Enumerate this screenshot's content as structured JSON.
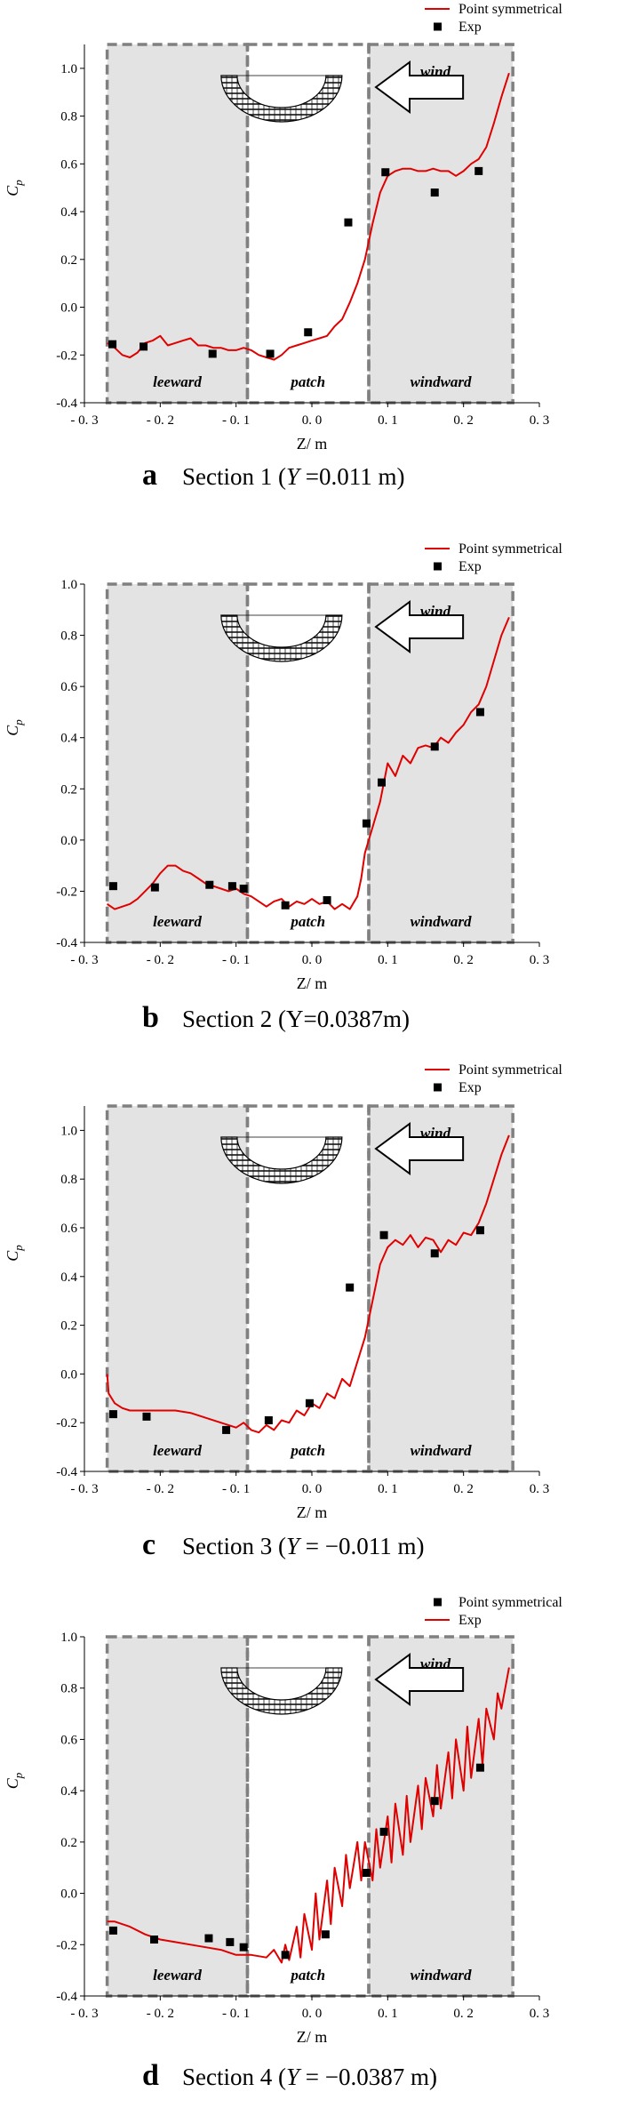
{
  "chart_data": [
    {
      "type": "line",
      "caption_letter": "a",
      "caption_text": "Section 1 (",
      "caption_var": "Y",
      "caption_rest": " =0.011 m)",
      "xlabel": "Z/ m",
      "ylabel_main": "C",
      "ylabel_sub": "p",
      "xlim": [
        -0.3,
        0.3
      ],
      "ylim": [
        -0.4,
        1.1
      ],
      "x_ticks": [
        "- 0. 3",
        "- 0. 2",
        "- 0. 1",
        "0. 0",
        "0. 1",
        "0. 2",
        "0. 3"
      ],
      "y_ticks": [
        "-0.4",
        "-0.2",
        "0.0",
        "0.2",
        "0.4",
        "0.6",
        "0.8",
        "1.0"
      ],
      "regions": [
        {
          "label": "leeward",
          "x": [
            -0.27,
            -0.085
          ]
        },
        {
          "label": "patch",
          "x": [
            -0.085,
            0.075
          ]
        },
        {
          "label": "windward",
          "x": [
            0.075,
            0.265
          ]
        }
      ],
      "wind_label": "wind",
      "legend": [
        "Point symmetrical",
        "Exp"
      ],
      "series": [
        {
          "name": "Point symmetrical",
          "kind": "line",
          "x": [
            -0.27,
            -0.26,
            -0.25,
            -0.24,
            -0.23,
            -0.22,
            -0.21,
            -0.2,
            -0.19,
            -0.18,
            -0.17,
            -0.16,
            -0.15,
            -0.14,
            -0.13,
            -0.12,
            -0.11,
            -0.1,
            -0.09,
            -0.08,
            -0.07,
            -0.06,
            -0.05,
            -0.04,
            -0.03,
            -0.02,
            -0.01,
            0.0,
            0.01,
            0.02,
            0.03,
            0.04,
            0.05,
            0.06,
            0.07,
            0.08,
            0.09,
            0.1,
            0.11,
            0.12,
            0.13,
            0.14,
            0.15,
            0.16,
            0.17,
            0.18,
            0.19,
            0.2,
            0.21,
            0.22,
            0.23,
            0.24,
            0.25,
            0.26
          ],
          "y": [
            -0.15,
            -0.17,
            -0.2,
            -0.21,
            -0.19,
            -0.15,
            -0.14,
            -0.12,
            -0.16,
            -0.15,
            -0.14,
            -0.13,
            -0.16,
            -0.16,
            -0.17,
            -0.17,
            -0.18,
            -0.18,
            -0.17,
            -0.18,
            -0.2,
            -0.21,
            -0.22,
            -0.2,
            -0.17,
            -0.16,
            -0.15,
            -0.14,
            -0.13,
            -0.12,
            -0.08,
            -0.05,
            0.02,
            0.1,
            0.2,
            0.35,
            0.48,
            0.55,
            0.57,
            0.58,
            0.58,
            0.57,
            0.57,
            0.58,
            0.57,
            0.57,
            0.55,
            0.57,
            0.6,
            0.62,
            0.67,
            0.77,
            0.88,
            0.98
          ]
        },
        {
          "name": "Exp",
          "kind": "scatter",
          "x": [
            -0.263,
            -0.222,
            -0.131,
            -0.055,
            -0.005,
            0.048,
            0.097,
            0.162,
            0.22
          ],
          "y": [
            -0.155,
            -0.165,
            -0.195,
            -0.195,
            -0.105,
            0.355,
            0.565,
            0.48,
            0.57
          ]
        }
      ]
    },
    {
      "type": "line",
      "caption_letter": "b",
      "caption_text": "Section 2 (Y=0.0387m)",
      "caption_var": "",
      "caption_rest": "",
      "xlabel": "Z/ m",
      "ylabel_main": "C",
      "ylabel_sub": "p",
      "xlim": [
        -0.3,
        0.3
      ],
      "ylim": [
        -0.4,
        1.0
      ],
      "x_ticks": [
        "- 0. 3",
        "- 0. 2",
        "- 0. 1",
        "0. 0",
        "0. 1",
        "0. 2",
        "0. 3"
      ],
      "y_ticks": [
        "-0.4",
        "-0.2",
        "0.0",
        "0.2",
        "0.4",
        "0.6",
        "0.8",
        "1.0"
      ],
      "regions": [
        {
          "label": "leeward",
          "x": [
            -0.27,
            -0.085
          ]
        },
        {
          "label": "patch",
          "x": [
            -0.085,
            0.075
          ]
        },
        {
          "label": "windward",
          "x": [
            0.075,
            0.265
          ]
        }
      ],
      "wind_label": "wind",
      "legend": [
        "Point symmetrical",
        "Exp"
      ],
      "series": [
        {
          "name": "Point symmetrical",
          "kind": "line",
          "x": [
            -0.27,
            -0.26,
            -0.25,
            -0.24,
            -0.23,
            -0.22,
            -0.21,
            -0.2,
            -0.19,
            -0.18,
            -0.17,
            -0.16,
            -0.15,
            -0.14,
            -0.13,
            -0.12,
            -0.11,
            -0.1,
            -0.09,
            -0.08,
            -0.07,
            -0.06,
            -0.05,
            -0.04,
            -0.03,
            -0.02,
            -0.01,
            0.0,
            0.01,
            0.02,
            0.03,
            0.04,
            0.05,
            0.06,
            0.065,
            0.07,
            0.08,
            0.09,
            0.1,
            0.11,
            0.12,
            0.13,
            0.14,
            0.15,
            0.16,
            0.17,
            0.18,
            0.19,
            0.2,
            0.21,
            0.22,
            0.23,
            0.24,
            0.25,
            0.26
          ],
          "y": [
            -0.25,
            -0.27,
            -0.26,
            -0.25,
            -0.23,
            -0.2,
            -0.17,
            -0.13,
            -0.1,
            -0.1,
            -0.12,
            -0.13,
            -0.15,
            -0.17,
            -0.18,
            -0.19,
            -0.2,
            -0.19,
            -0.21,
            -0.22,
            -0.24,
            -0.26,
            -0.24,
            -0.23,
            -0.26,
            -0.24,
            -0.25,
            -0.23,
            -0.25,
            -0.24,
            -0.27,
            -0.25,
            -0.27,
            -0.22,
            -0.15,
            -0.05,
            0.05,
            0.15,
            0.3,
            0.25,
            0.33,
            0.3,
            0.36,
            0.37,
            0.36,
            0.4,
            0.38,
            0.42,
            0.45,
            0.5,
            0.53,
            0.6,
            0.7,
            0.8,
            0.87
          ]
        },
        {
          "name": "Exp",
          "kind": "scatter",
          "x": [
            -0.262,
            -0.207,
            -0.135,
            -0.105,
            -0.09,
            -0.035,
            0.02,
            0.072,
            0.092,
            0.162,
            0.222
          ],
          "y": [
            -0.18,
            -0.185,
            -0.175,
            -0.18,
            -0.19,
            -0.255,
            -0.235,
            0.065,
            0.225,
            0.365,
            0.5
          ]
        }
      ]
    },
    {
      "type": "line",
      "caption_letter": "c",
      "caption_text": "Section 3 (",
      "caption_var": "Y",
      "caption_rest": " = −0.011 m)",
      "xlabel": "Z/ m",
      "ylabel_main": "C",
      "ylabel_sub": "p",
      "xlim": [
        -0.3,
        0.3
      ],
      "ylim": [
        -0.4,
        1.1
      ],
      "x_ticks": [
        "- 0. 3",
        "- 0. 2",
        "- 0. 1",
        "0. 0",
        "0. 1",
        "0. 2",
        "0. 3"
      ],
      "y_ticks": [
        "-0.4",
        "-0.2",
        "0.0",
        "0.2",
        "0.4",
        "0.6",
        "0.8",
        "1.0"
      ],
      "regions": [
        {
          "label": "leeward",
          "x": [
            -0.27,
            -0.085
          ]
        },
        {
          "label": "patch",
          "x": [
            -0.085,
            0.075
          ]
        },
        {
          "label": "windward",
          "x": [
            0.075,
            0.265
          ]
        }
      ],
      "wind_label": "wind",
      "legend": [
        "Point symmetrical",
        "Exp"
      ],
      "series": [
        {
          "name": "Point symmetrical",
          "kind": "line",
          "x": [
            -0.27,
            -0.268,
            -0.26,
            -0.25,
            -0.24,
            -0.22,
            -0.2,
            -0.18,
            -0.16,
            -0.14,
            -0.12,
            -0.1,
            -0.09,
            -0.08,
            -0.07,
            -0.06,
            -0.05,
            -0.04,
            -0.03,
            -0.02,
            -0.01,
            0.0,
            0.01,
            0.02,
            0.03,
            0.04,
            0.05,
            0.06,
            0.07,
            0.08,
            0.09,
            0.1,
            0.11,
            0.12,
            0.13,
            0.14,
            0.15,
            0.16,
            0.17,
            0.18,
            0.19,
            0.2,
            0.21,
            0.22,
            0.23,
            0.24,
            0.25,
            0.26
          ],
          "y": [
            0.0,
            -0.08,
            -0.12,
            -0.14,
            -0.15,
            -0.15,
            -0.15,
            -0.15,
            -0.16,
            -0.18,
            -0.2,
            -0.22,
            -0.2,
            -0.23,
            -0.24,
            -0.21,
            -0.23,
            -0.19,
            -0.2,
            -0.15,
            -0.17,
            -0.12,
            -0.14,
            -0.08,
            -0.1,
            -0.02,
            -0.05,
            0.05,
            0.15,
            0.3,
            0.45,
            0.52,
            0.55,
            0.53,
            0.57,
            0.52,
            0.56,
            0.55,
            0.5,
            0.55,
            0.53,
            0.58,
            0.57,
            0.62,
            0.7,
            0.8,
            0.9,
            0.98
          ]
        },
        {
          "name": "Exp",
          "kind": "scatter",
          "x": [
            -0.262,
            -0.218,
            -0.113,
            -0.057,
            -0.003,
            0.05,
            0.095,
            0.162,
            0.222
          ],
          "y": [
            -0.165,
            -0.175,
            -0.23,
            -0.19,
            -0.12,
            0.355,
            0.57,
            0.495,
            0.59
          ]
        }
      ]
    },
    {
      "type": "line",
      "caption_letter": "d",
      "caption_text": "Section 4 (",
      "caption_var": "Y",
      "caption_rest": " = −0.0387 m)",
      "xlabel": "Z/ m",
      "ylabel_main": "C",
      "ylabel_sub": "p",
      "xlim": [
        -0.3,
        0.3
      ],
      "ylim": [
        -0.4,
        1.0
      ],
      "x_ticks": [
        "- 0. 3",
        "- 0. 2",
        "- 0. 1",
        "0. 0",
        "0. 1",
        "0. 2",
        "0. 3"
      ],
      "y_ticks": [
        "-0.4",
        "-0.2",
        "0.0",
        "0.2",
        "0.4",
        "0.6",
        "0.8",
        "1.0"
      ],
      "regions": [
        {
          "label": "leeward",
          "x": [
            -0.27,
            -0.085
          ]
        },
        {
          "label": "patch",
          "x": [
            -0.085,
            0.075
          ]
        },
        {
          "label": "windward",
          "x": [
            0.075,
            0.265
          ]
        }
      ],
      "wind_label": "wind",
      "legend": [
        "Point symmetrical",
        "Exp"
      ],
      "series": [
        {
          "name": "Exp",
          "kind": "line",
          "x": [
            -0.27,
            -0.26,
            -0.24,
            -0.22,
            -0.2,
            -0.18,
            -0.16,
            -0.14,
            -0.12,
            -0.1,
            -0.08,
            -0.06,
            -0.05,
            -0.04,
            -0.035,
            -0.03,
            -0.02,
            -0.015,
            -0.01,
            0.0,
            0.005,
            0.01,
            0.02,
            0.025,
            0.03,
            0.04,
            0.045,
            0.05,
            0.06,
            0.065,
            0.07,
            0.08,
            0.085,
            0.09,
            0.1,
            0.105,
            0.11,
            0.12,
            0.125,
            0.13,
            0.14,
            0.145,
            0.15,
            0.16,
            0.165,
            0.17,
            0.18,
            0.185,
            0.19,
            0.2,
            0.205,
            0.21,
            0.22,
            0.225,
            0.23,
            0.24,
            0.245,
            0.25,
            0.26
          ],
          "y": [
            -0.11,
            -0.11,
            -0.13,
            -0.16,
            -0.18,
            -0.19,
            -0.2,
            -0.21,
            -0.22,
            -0.24,
            -0.24,
            -0.25,
            -0.22,
            -0.27,
            -0.2,
            -0.26,
            -0.13,
            -0.25,
            -0.08,
            -0.22,
            0.0,
            -0.18,
            0.05,
            -0.12,
            0.1,
            -0.05,
            0.15,
            0.02,
            0.2,
            0.05,
            0.2,
            0.05,
            0.25,
            0.1,
            0.3,
            0.12,
            0.35,
            0.15,
            0.38,
            0.2,
            0.42,
            0.25,
            0.45,
            0.3,
            0.5,
            0.33,
            0.55,
            0.37,
            0.6,
            0.4,
            0.65,
            0.45,
            0.68,
            0.5,
            0.72,
            0.6,
            0.78,
            0.72,
            0.88
          ]
        },
        {
          "name": "Point symmetrical",
          "kind": "scatter",
          "x": [
            -0.262,
            -0.208,
            -0.136,
            -0.108,
            -0.09,
            -0.035,
            0.018,
            0.072,
            0.095,
            0.162,
            0.222
          ],
          "y": [
            -0.145,
            -0.18,
            -0.175,
            -0.19,
            -0.21,
            -0.24,
            -0.16,
            0.08,
            0.24,
            0.36,
            0.49
          ]
        }
      ]
    }
  ]
}
